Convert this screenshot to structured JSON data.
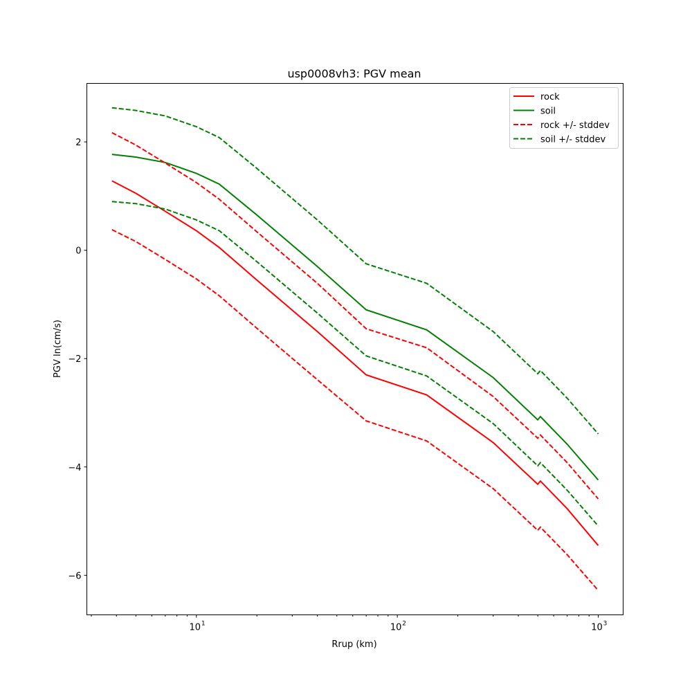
{
  "chart_data": {
    "type": "line",
    "title": "usp0008vh3: PGV mean",
    "xlabel": "Rrup (km)",
    "ylabel": "PGV ln(cm/s)",
    "xscale": "log",
    "xlim": [
      2.85,
      1330
    ],
    "ylim": [
      -6.73,
      3.08
    ],
    "x_major_ticks": [
      {
        "value": 10,
        "base": "10",
        "exp": "1"
      },
      {
        "value": 100,
        "base": "10",
        "exp": "2"
      },
      {
        "value": 1000,
        "base": "10",
        "exp": "3"
      }
    ],
    "y_ticks": [
      {
        "value": 2,
        "label": "2"
      },
      {
        "value": 0,
        "label": "0"
      },
      {
        "value": -2,
        "label": "−2"
      },
      {
        "value": -4,
        "label": "−4"
      },
      {
        "value": -6,
        "label": "−6"
      }
    ],
    "legend_position": "top-right",
    "x": [
      3.8,
      5,
      7,
      10,
      13,
      20,
      40,
      70,
      140,
      300,
      500,
      515,
      700,
      1000
    ],
    "series": [
      {
        "name": "rock",
        "color": "#ff0000",
        "dash": false,
        "values": [
          1.28,
          1.05,
          0.72,
          0.36,
          0.05,
          -0.55,
          -1.5,
          -2.3,
          -2.67,
          -3.55,
          -4.32,
          -4.26,
          -4.77,
          -5.45
        ]
      },
      {
        "name": "soil",
        "color": "#008000",
        "dash": false,
        "values": [
          1.77,
          1.72,
          1.62,
          1.42,
          1.22,
          0.65,
          -0.3,
          -1.1,
          -1.47,
          -2.35,
          -3.13,
          -3.07,
          -3.58,
          -4.24
        ]
      },
      {
        "name": "rock +/- stddev",
        "color": "#ff0000",
        "dash": true,
        "values": [
          2.17,
          1.94,
          1.61,
          1.25,
          0.94,
          0.34,
          -0.61,
          -1.45,
          -1.8,
          -2.7,
          -3.47,
          -3.41,
          -3.92,
          -4.59
        ],
        "values_lower": [
          0.38,
          0.16,
          -0.17,
          -0.53,
          -0.84,
          -1.44,
          -2.39,
          -3.15,
          -3.52,
          -4.4,
          -5.17,
          -5.11,
          -5.62,
          -6.28
        ]
      },
      {
        "name": "soil +/- stddev",
        "color": "#008000",
        "dash": true,
        "values": [
          2.63,
          2.58,
          2.48,
          2.28,
          2.08,
          1.51,
          0.56,
          -0.25,
          -0.61,
          -1.5,
          -2.28,
          -2.22,
          -2.73,
          -3.39
        ],
        "values_lower": [
          0.9,
          0.86,
          0.76,
          0.56,
          0.36,
          -0.21,
          -1.16,
          -1.95,
          -2.32,
          -3.2,
          -3.98,
          -3.92,
          -4.43,
          -5.09
        ]
      }
    ]
  }
}
